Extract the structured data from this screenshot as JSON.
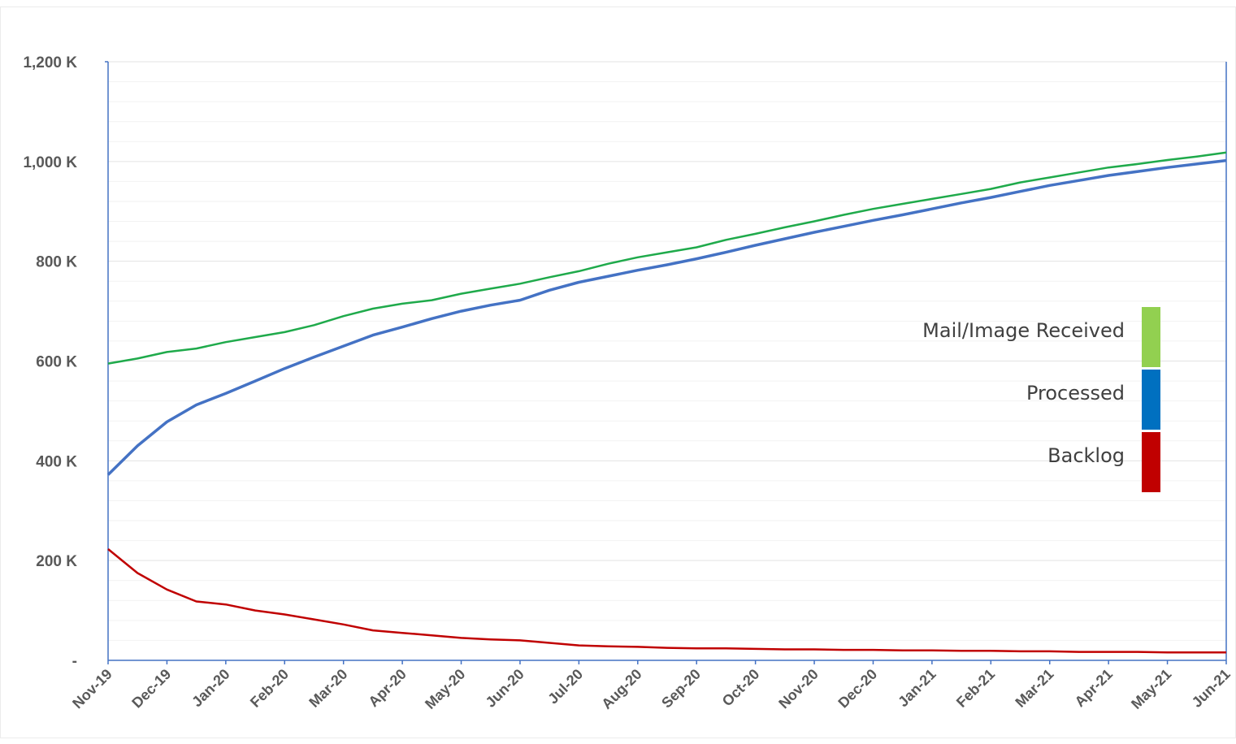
{
  "chart_data": {
    "type": "line",
    "title": "",
    "xlabel": "",
    "ylabel": "",
    "ylim": [
      0,
      1200
    ],
    "y_ticks": [
      {
        "value": 0,
        "label": "-"
      },
      {
        "value": 200,
        "label": "200 K"
      },
      {
        "value": 400,
        "label": "400 K"
      },
      {
        "value": 600,
        "label": "600 K"
      },
      {
        "value": 800,
        "label": "800 K"
      },
      {
        "value": 1000,
        "label": "1,000 K"
      },
      {
        "value": 1200,
        "label": "1,200 K"
      }
    ],
    "x_ticks": [
      "Nov-19",
      "Dec-19",
      "Jan-20",
      "Feb-20",
      "Mar-20",
      "Apr-20",
      "May-20",
      "Jun-20",
      "Jul-20",
      "Aug-20",
      "Sep-20",
      "Oct-20",
      "Nov-20",
      "Dec-20",
      "Jan-21",
      "Feb-21",
      "Mar-21",
      "Apr-21",
      "May-21",
      "Jun-21"
    ],
    "grid": true,
    "legend_position": "right",
    "series": [
      {
        "name": "Mail/Image Received",
        "color": "#1FAA4B",
        "legend_color": "#92D050",
        "x": [
          0,
          0.5,
          1,
          1.5,
          2,
          2.5,
          3,
          3.5,
          4,
          4.5,
          5,
          5.5,
          6,
          6.5,
          7,
          7.5,
          8,
          8.5,
          9,
          9.5,
          10,
          10.5,
          11,
          11.5,
          12,
          12.5,
          13,
          13.5,
          14,
          14.5,
          15,
          15.5,
          16,
          16.5,
          17,
          17.5,
          18,
          18.5,
          19
        ],
        "values": [
          595,
          605,
          618,
          625,
          638,
          648,
          658,
          672,
          690,
          705,
          715,
          722,
          735,
          745,
          755,
          768,
          780,
          795,
          808,
          818,
          828,
          843,
          855,
          868,
          880,
          893,
          905,
          915,
          925,
          935,
          945,
          958,
          968,
          978,
          988,
          995,
          1003,
          1010,
          1018
        ]
      },
      {
        "name": "Processed",
        "color": "#4472C4",
        "legend_color": "#0070C0",
        "x": [
          0,
          0.5,
          1,
          1.5,
          2,
          2.5,
          3,
          3.5,
          4,
          4.5,
          5,
          5.5,
          6,
          6.5,
          7,
          7.5,
          8,
          8.5,
          9,
          9.5,
          10,
          10.5,
          11,
          11.5,
          12,
          12.5,
          13,
          13.5,
          14,
          14.5,
          15,
          15.5,
          16,
          16.5,
          17,
          17.5,
          18,
          18.5,
          19
        ],
        "values": [
          372,
          430,
          478,
          512,
          535,
          560,
          585,
          608,
          630,
          652,
          668,
          685,
          700,
          712,
          722,
          742,
          758,
          770,
          782,
          793,
          805,
          818,
          832,
          845,
          858,
          870,
          882,
          893,
          905,
          917,
          928,
          940,
          952,
          962,
          972,
          980,
          988,
          995,
          1002
        ]
      },
      {
        "name": "Backlog",
        "color": "#C00000",
        "legend_color": "#C00000",
        "x": [
          0,
          0.5,
          1,
          1.5,
          2,
          2.5,
          3,
          3.5,
          4,
          4.5,
          5,
          5.5,
          6,
          6.5,
          7,
          7.5,
          8,
          8.5,
          9,
          9.5,
          10,
          10.5,
          11,
          11.5,
          12,
          12.5,
          13,
          13.5,
          14,
          14.5,
          15,
          15.5,
          16,
          16.5,
          17,
          17.5,
          18,
          18.5,
          19
        ],
        "values": [
          223,
          175,
          142,
          118,
          112,
          100,
          92,
          82,
          72,
          60,
          55,
          50,
          45,
          42,
          40,
          35,
          30,
          28,
          27,
          25,
          24,
          24,
          23,
          22,
          22,
          21,
          21,
          20,
          20,
          19,
          19,
          18,
          18,
          17,
          17,
          17,
          16,
          16,
          16
        ]
      }
    ]
  }
}
